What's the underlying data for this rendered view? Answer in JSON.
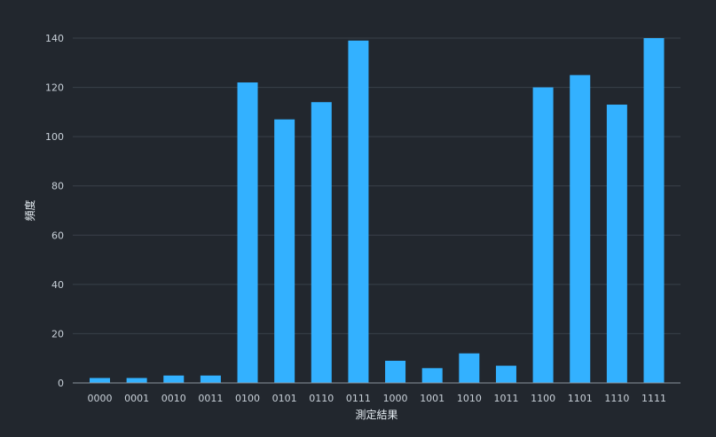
{
  "chart_data": {
    "type": "bar",
    "title": "",
    "xlabel": "測定結果",
    "ylabel": "頻度",
    "categories": [
      "0000",
      "0001",
      "0010",
      "0011",
      "0100",
      "0101",
      "0110",
      "0111",
      "1000",
      "1001",
      "1010",
      "1011",
      "1100",
      "1101",
      "1110",
      "1111"
    ],
    "values": [
      2,
      2,
      3,
      3,
      122,
      107,
      114,
      139,
      9,
      6,
      12,
      7,
      120,
      125,
      113,
      140
    ],
    "ylim": [
      0,
      140
    ],
    "yticks": [
      0,
      20,
      40,
      60,
      80,
      100,
      120,
      140
    ],
    "grid": true,
    "colors": {
      "bar": "#33b1ff",
      "background": "#22272e",
      "grid": "#3a414a",
      "axis": "#8b949e"
    }
  }
}
